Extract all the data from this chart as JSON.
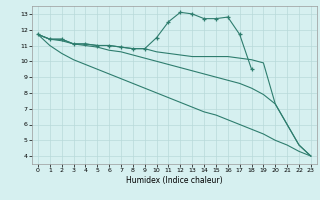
{
  "xlabel": "Humidex (Indice chaleur)",
  "bg_color": "#d6f0f0",
  "grid_color": "#b8dada",
  "line_color": "#2e7d6e",
  "xlim": [
    -0.5,
    23.5
  ],
  "ylim": [
    3.5,
    13.5
  ],
  "xticks": [
    0,
    1,
    2,
    3,
    4,
    5,
    6,
    7,
    8,
    9,
    10,
    11,
    12,
    13,
    14,
    15,
    16,
    17,
    18,
    19,
    20,
    21,
    22,
    23
  ],
  "yticks": [
    4,
    5,
    6,
    7,
    8,
    9,
    10,
    11,
    12,
    13
  ],
  "series": [
    {
      "x": [
        0,
        1,
        2,
        3,
        4,
        5,
        6,
        7,
        8,
        9,
        10,
        11,
        12,
        13,
        14,
        15,
        16,
        17,
        18
      ],
      "y": [
        11.7,
        11.4,
        11.4,
        11.1,
        11.1,
        11.0,
        11.0,
        10.9,
        10.8,
        10.8,
        11.5,
        12.5,
        13.1,
        13.0,
        12.7,
        12.7,
        12.8,
        11.7,
        9.5
      ],
      "marker": true
    },
    {
      "x": [
        0,
        1,
        2,
        3,
        4,
        5,
        6,
        7,
        8,
        9,
        10,
        11,
        12,
        13,
        14,
        15,
        16,
        17,
        18,
        19,
        20,
        21,
        22,
        23
      ],
      "y": [
        11.7,
        11.4,
        11.4,
        11.1,
        11.1,
        11.0,
        11.0,
        10.9,
        10.8,
        10.8,
        10.6,
        10.5,
        10.4,
        10.3,
        10.3,
        10.3,
        10.3,
        10.2,
        10.1,
        9.9,
        7.3,
        6.0,
        4.7,
        4.0
      ],
      "marker": false
    },
    {
      "x": [
        0,
        1,
        2,
        3,
        4,
        5,
        6,
        7,
        8,
        9,
        10,
        11,
        12,
        13,
        14,
        15,
        16,
        17,
        18,
        19,
        20,
        21,
        22,
        23
      ],
      "y": [
        11.7,
        11.4,
        11.3,
        11.1,
        11.0,
        10.9,
        10.7,
        10.6,
        10.4,
        10.2,
        10.0,
        9.8,
        9.6,
        9.4,
        9.2,
        9.0,
        8.8,
        8.6,
        8.3,
        7.9,
        7.3,
        6.0,
        4.7,
        4.0
      ],
      "marker": false
    },
    {
      "x": [
        0,
        1,
        2,
        3,
        4,
        5,
        6,
        7,
        8,
        9,
        10,
        11,
        12,
        13,
        14,
        15,
        16,
        17,
        18,
        19,
        20,
        21,
        22,
        23
      ],
      "y": [
        11.7,
        11.0,
        10.5,
        10.1,
        9.8,
        9.5,
        9.2,
        8.9,
        8.6,
        8.3,
        8.0,
        7.7,
        7.4,
        7.1,
        6.8,
        6.6,
        6.3,
        6.0,
        5.7,
        5.4,
        5.0,
        4.7,
        4.3,
        4.0
      ],
      "marker": false
    }
  ]
}
